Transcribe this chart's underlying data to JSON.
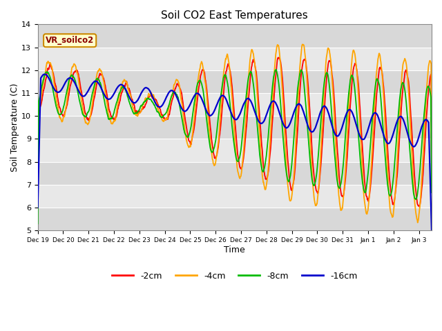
{
  "title": "Soil CO2 East Temperatures",
  "xlabel": "Time",
  "ylabel": "Soil Temperature (C)",
  "ylim": [
    5.0,
    14.0
  ],
  "yticks": [
    5.0,
    6.0,
    7.0,
    8.0,
    9.0,
    10.0,
    11.0,
    12.0,
    13.0,
    14.0
  ],
  "annotation": "VR_soilco2",
  "colors": {
    "-2cm": "#ff0000",
    "-4cm": "#ffa500",
    "-8cm": "#00bb00",
    "-16cm": "#0000cc"
  },
  "legend_labels": [
    "-2cm",
    "-4cm",
    "-8cm",
    "-16cm"
  ],
  "background_color": "#ffffff",
  "plot_bg_color": "#e0e0e0",
  "band_colors": [
    "#d8d8d8",
    "#e8e8e8"
  ],
  "grid_color": "#ffffff",
  "x_tick_labels": [
    "Dec 19",
    "Dec 20",
    "Dec 21",
    "Dec 22",
    "Dec 23",
    "Dec 24",
    "Dec 25",
    "Dec 26",
    "Dec 27",
    "Dec 28",
    "Dec 29",
    "Dec 30",
    "Dec 31",
    "Jan 1",
    "Jan 2",
    "Jan 3"
  ]
}
